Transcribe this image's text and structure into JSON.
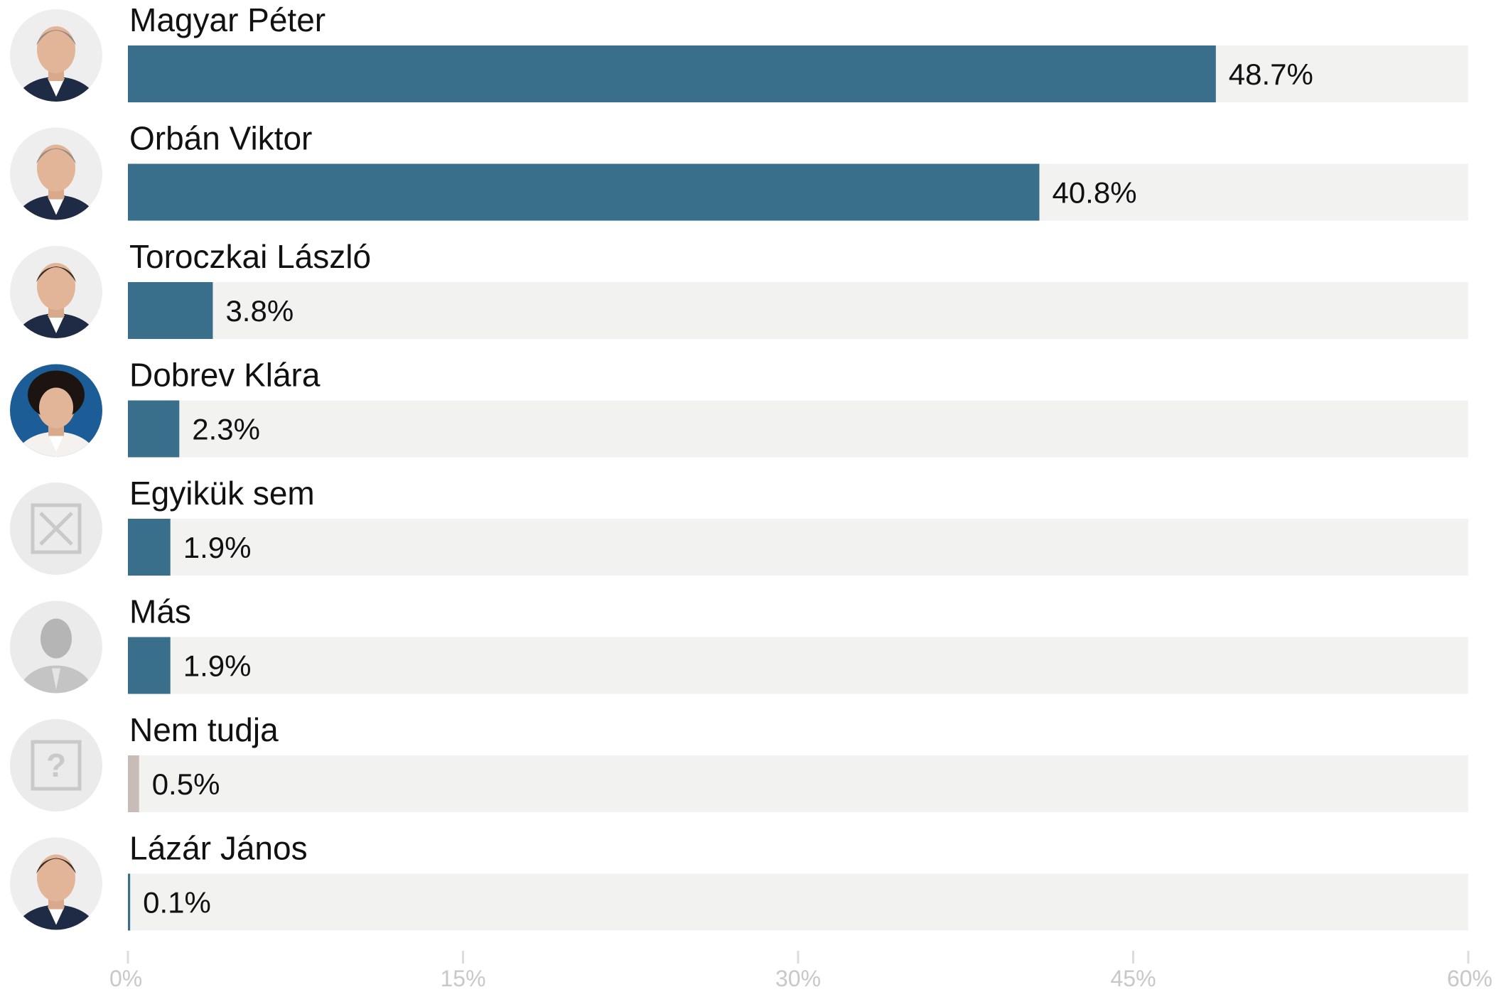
{
  "chart_data": {
    "type": "bar",
    "orientation": "horizontal",
    "categories": [
      "Magyar Péter",
      "Orbán Viktor",
      "Toroczkai László",
      "Dobrev Klára",
      "Egyikük sem",
      "Más",
      "Nem tudja",
      "Lázár János"
    ],
    "values": [
      48.7,
      40.8,
      3.8,
      2.3,
      1.9,
      1.9,
      0.5,
      0.1
    ],
    "value_labels": [
      "48.7%",
      "40.8%",
      "3.8%",
      "2.3%",
      "1.9%",
      "1.9%",
      "0.5%",
      "0.1%"
    ],
    "avatar_icons": [
      "person-photo-icon",
      "person-photo-icon",
      "person-photo-icon",
      "person-photo-icon",
      "x-box-icon",
      "person-silhouette-icon",
      "question-box-icon",
      "person-photo-icon"
    ],
    "bar_colors": [
      "#3a6f8c",
      "#3a6f8c",
      "#3a6f8c",
      "#3a6f8c",
      "#3a6f8c",
      "#3a6f8c",
      "#c7bdb6",
      "#3a6f8c"
    ],
    "track_color": "#f2f2f0",
    "xlim": [
      0,
      60
    ],
    "xticks": [
      0,
      15,
      30,
      45,
      60
    ],
    "xtick_labels": [
      "0%",
      "15%",
      "30%",
      "45%",
      "60%"
    ],
    "title": "",
    "xlabel": "",
    "ylabel": "",
    "grid": false,
    "legend": "none"
  }
}
